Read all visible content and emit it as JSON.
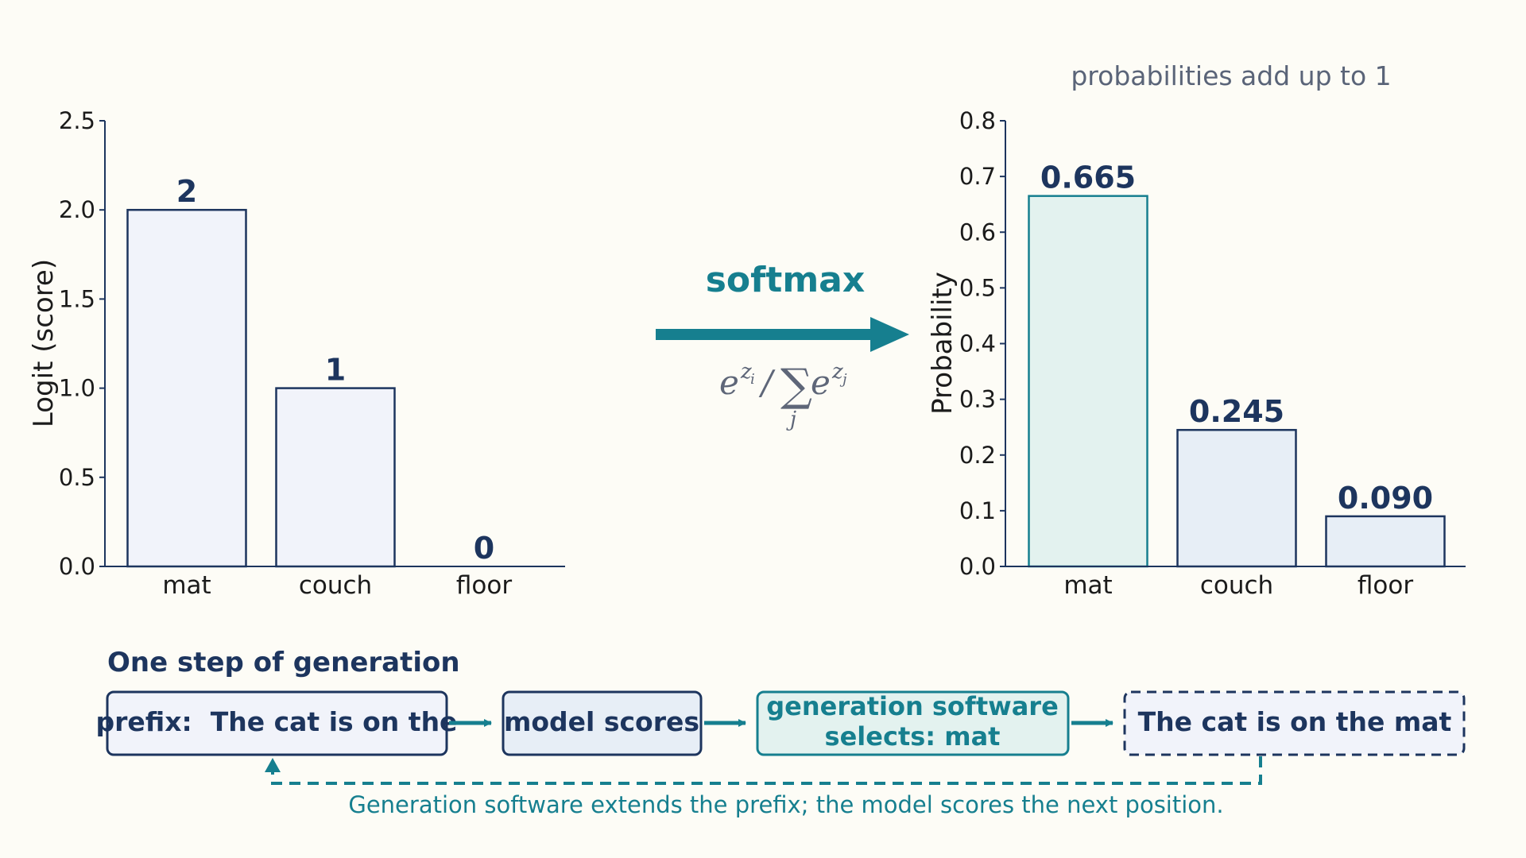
{
  "chart_data": [
    {
      "type": "bar",
      "categories": [
        "mat",
        "couch",
        "floor"
      ],
      "values": [
        2,
        1,
        0
      ],
      "value_labels": [
        "2",
        "1",
        "0"
      ],
      "title": "",
      "xlabel": "",
      "ylabel": "Logit (score)",
      "ylim": [
        0,
        2.5
      ],
      "yticks": [
        "0.0",
        "0.5",
        "1.0",
        "1.5",
        "2.0",
        "2.5"
      ],
      "grid": false,
      "colors": {
        "fill": "#f1f3fa",
        "stroke": "#1d355e"
      }
    },
    {
      "type": "bar",
      "categories": [
        "mat",
        "couch",
        "floor"
      ],
      "values": [
        0.665,
        0.245,
        0.09
      ],
      "value_labels": [
        "0.665",
        "0.245",
        "0.090"
      ],
      "title": "",
      "xlabel": "",
      "ylabel": "Probability",
      "ylim": [
        0,
        0.8
      ],
      "yticks": [
        "0.0",
        "0.1",
        "0.2",
        "0.3",
        "0.4",
        "0.5",
        "0.6",
        "0.7",
        "0.8"
      ],
      "grid": false,
      "annotation": "probabilities add up to 1",
      "colors": {
        "highlight_fill": "#e3f2ef",
        "highlight_stroke": "#167f8f",
        "fill": "#e7eef6",
        "stroke": "#1d355e"
      }
    }
  ],
  "transform": {
    "label": "softmax",
    "formula": {
      "base": "e",
      "num_sup": "z",
      "num_sub": "i",
      "slash": "/",
      "sum": "∑",
      "sum_sub": "j",
      "den_sup": "z",
      "den_sub": "j"
    },
    "arrow_color": "#167f8f"
  },
  "generation": {
    "title": "One step of generation",
    "steps": [
      {
        "lines": [
          "prefix:  The cat is on the"
        ],
        "style": "solid"
      },
      {
        "lines": [
          "model scores"
        ],
        "style": "solid"
      },
      {
        "lines": [
          "generation software",
          "selects: mat"
        ],
        "style": "accent"
      },
      {
        "lines": [
          "The cat is on the mat"
        ],
        "style": "dashed"
      }
    ],
    "feedback_caption": "Generation software extends the prefix; the model scores the next position."
  },
  "colors": {
    "background": "#fdfcf6",
    "navy": "#1d355e",
    "teal": "#167f8f",
    "muted": "#5a6478"
  }
}
